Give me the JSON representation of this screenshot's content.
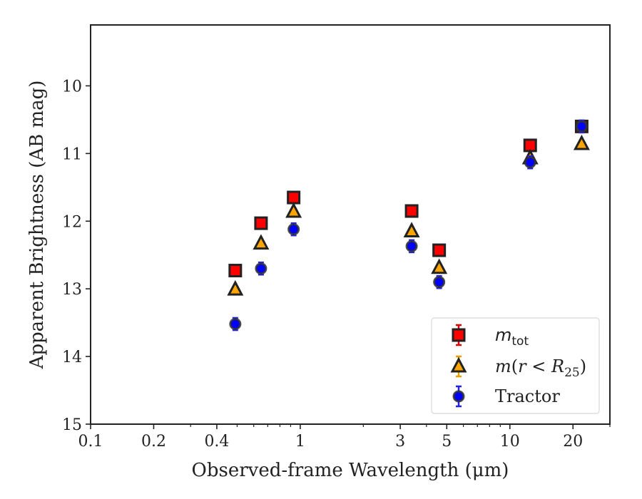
{
  "chart_data": {
    "type": "scatter",
    "title": "",
    "xlabel": "Observed-frame Wavelength (μm)",
    "ylabel": "Apparent Brightness (AB mag)",
    "xscale": "log",
    "xlim": [
      0.1,
      30
    ],
    "ylim": [
      15,
      9.1
    ],
    "y_inverted": true,
    "x_ticks": [
      0.1,
      0.2,
      0.4,
      1,
      3,
      5,
      10,
      20
    ],
    "x_tick_labels": [
      "0.1",
      "0.2",
      "0.4",
      "1",
      "3",
      "5",
      "10",
      "20"
    ],
    "y_ticks": [
      10,
      11,
      12,
      13,
      14,
      15
    ],
    "y_tick_labels": [
      "10",
      "11",
      "12",
      "13",
      "14",
      "15"
    ],
    "grid": false,
    "legend_position": "lower-right",
    "series": [
      {
        "name": "m_tot",
        "legend_label": "m_tot",
        "marker": "square",
        "color": "#ff0000",
        "error_color": "#dd0000",
        "points": [
          {
            "x": 0.49,
            "y": 12.73,
            "err": 0.07
          },
          {
            "x": 0.65,
            "y": 12.03,
            "err": 0.07
          },
          {
            "x": 0.93,
            "y": 11.65,
            "err": 0.07
          },
          {
            "x": 3.4,
            "y": 11.85,
            "err": 0.07
          },
          {
            "x": 4.6,
            "y": 12.43,
            "err": 0.07
          },
          {
            "x": 12.5,
            "y": 10.88,
            "err": 0.07
          },
          {
            "x": 22.0,
            "y": 10.6,
            "err": 0.07
          }
        ]
      },
      {
        "name": "m(r<R25)",
        "legend_label": "m(r < R25)",
        "marker": "triangle",
        "color": "#ffa500",
        "error_color": "#e6a000",
        "points": [
          {
            "x": 0.49,
            "y": 13.01,
            "err": 0.05
          },
          {
            "x": 0.65,
            "y": 12.33,
            "err": 0.05
          },
          {
            "x": 0.93,
            "y": 11.86,
            "err": 0.05
          },
          {
            "x": 3.4,
            "y": 12.15,
            "err": 0.05
          },
          {
            "x": 4.6,
            "y": 12.69,
            "err": 0.05
          },
          {
            "x": 12.5,
            "y": 11.07,
            "err": 0.05
          },
          {
            "x": 22.0,
            "y": 10.86,
            "err": 0.05
          }
        ]
      },
      {
        "name": "Tractor",
        "legend_label": "Tractor",
        "marker": "circle",
        "color": "#0000ff",
        "error_color": "#2222ee",
        "points": [
          {
            "x": 0.49,
            "y": 13.52,
            "err": 0.09
          },
          {
            "x": 0.65,
            "y": 12.7,
            "err": 0.09
          },
          {
            "x": 0.93,
            "y": 12.12,
            "err": 0.09
          },
          {
            "x": 3.4,
            "y": 12.37,
            "err": 0.09
          },
          {
            "x": 4.6,
            "y": 12.9,
            "err": 0.09
          },
          {
            "x": 12.5,
            "y": 11.13,
            "err": 0.09
          },
          {
            "x": 22.0,
            "y": 10.6,
            "err": 0.09
          }
        ]
      }
    ]
  }
}
